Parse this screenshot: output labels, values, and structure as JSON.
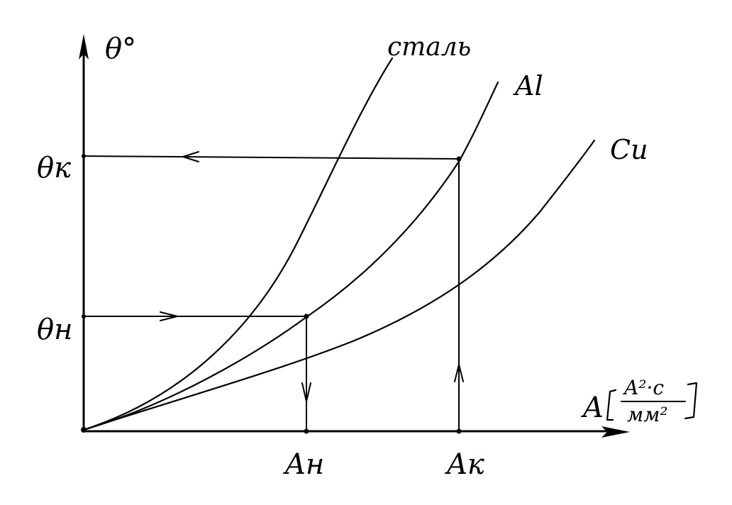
{
  "axes": {
    "y_label": "θ°",
    "x_label_main": "A",
    "x_unit_numerator": "A²·c",
    "x_unit_denominator": "мм²"
  },
  "curves": {
    "steel": "сталь",
    "aluminium": "Al",
    "copper": "Cu"
  },
  "levels": {
    "theta_k": "θк",
    "theta_n": "θн",
    "a_n": "Aн",
    "a_k": "Aк"
  }
}
